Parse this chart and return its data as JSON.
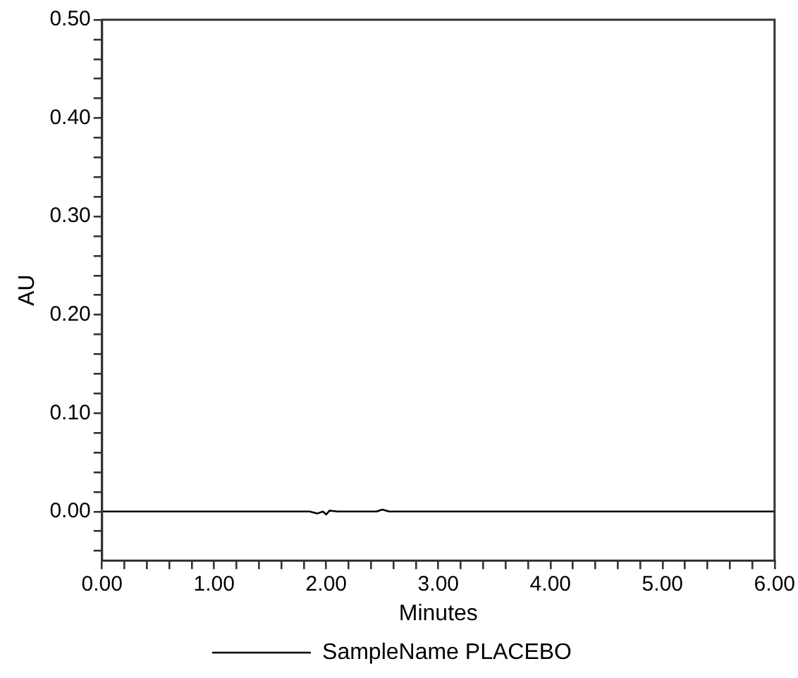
{
  "chart_data": {
    "type": "line",
    "xlabel": "Minutes",
    "ylabel": "AU",
    "xlim": [
      0,
      6
    ],
    "ylim": [
      -0.05,
      0.5
    ],
    "xticks": [
      {
        "value": 0,
        "label": "0.00"
      },
      {
        "value": 0.2,
        "label": null
      },
      {
        "value": 0.4,
        "label": null
      },
      {
        "value": 0.6,
        "label": null
      },
      {
        "value": 0.8,
        "label": null
      },
      {
        "value": 1,
        "label": "1.00"
      },
      {
        "value": 1.2,
        "label": null
      },
      {
        "value": 1.4,
        "label": null
      },
      {
        "value": 1.6,
        "label": null
      },
      {
        "value": 1.8,
        "label": null
      },
      {
        "value": 2,
        "label": "2.00"
      },
      {
        "value": 2.2,
        "label": null
      },
      {
        "value": 2.4,
        "label": null
      },
      {
        "value": 2.6,
        "label": null
      },
      {
        "value": 2.8,
        "label": null
      },
      {
        "value": 3,
        "label": "3.00"
      },
      {
        "value": 3.2,
        "label": null
      },
      {
        "value": 3.4,
        "label": null
      },
      {
        "value": 3.6,
        "label": null
      },
      {
        "value": 3.8,
        "label": null
      },
      {
        "value": 4,
        "label": "4.00"
      },
      {
        "value": 4.2,
        "label": null
      },
      {
        "value": 4.4,
        "label": null
      },
      {
        "value": 4.6,
        "label": null
      },
      {
        "value": 4.8,
        "label": null
      },
      {
        "value": 5,
        "label": "5.00"
      },
      {
        "value": 5.2,
        "label": null
      },
      {
        "value": 5.4,
        "label": null
      },
      {
        "value": 5.6,
        "label": null
      },
      {
        "value": 5.8,
        "label": null
      },
      {
        "value": 6,
        "label": "6.00"
      }
    ],
    "yticks": [
      {
        "value": -0.04,
        "label": null
      },
      {
        "value": -0.02,
        "label": null
      },
      {
        "value": 0,
        "label": "0.00"
      },
      {
        "value": 0.02,
        "label": null
      },
      {
        "value": 0.04,
        "label": null
      },
      {
        "value": 0.06,
        "label": null
      },
      {
        "value": 0.08,
        "label": null
      },
      {
        "value": 0.1,
        "label": "0.10"
      },
      {
        "value": 0.12,
        "label": null
      },
      {
        "value": 0.14,
        "label": null
      },
      {
        "value": 0.16,
        "label": null
      },
      {
        "value": 0.18,
        "label": null
      },
      {
        "value": 0.2,
        "label": "0.20"
      },
      {
        "value": 0.22,
        "label": null
      },
      {
        "value": 0.24,
        "label": null
      },
      {
        "value": 0.26,
        "label": null
      },
      {
        "value": 0.28,
        "label": null
      },
      {
        "value": 0.3,
        "label": "0.30"
      },
      {
        "value": 0.32,
        "label": null
      },
      {
        "value": 0.34,
        "label": null
      },
      {
        "value": 0.36,
        "label": null
      },
      {
        "value": 0.38,
        "label": null
      },
      {
        "value": 0.4,
        "label": "0.40"
      },
      {
        "value": 0.42,
        "label": null
      },
      {
        "value": 0.44,
        "label": null
      },
      {
        "value": 0.46,
        "label": null
      },
      {
        "value": 0.48,
        "label": null
      },
      {
        "value": 0.5,
        "label": "0.50"
      }
    ],
    "x": [
      0,
      1.5,
      1.85,
      1.92,
      1.97,
      2.0,
      2.03,
      2.1,
      2.45,
      2.5,
      2.56,
      3.5,
      5.0,
      6.0
    ],
    "series": [
      {
        "name": "SampleName PLACEBO",
        "color": "#000000",
        "values": [
          0,
          0,
          0,
          -0.002,
          0,
          -0.003,
          0.001,
          0,
          0,
          0.002,
          0,
          0,
          0,
          0
        ]
      }
    ],
    "legend": "bottom",
    "grid": false,
    "marker": "none",
    "line_style": "solid"
  }
}
